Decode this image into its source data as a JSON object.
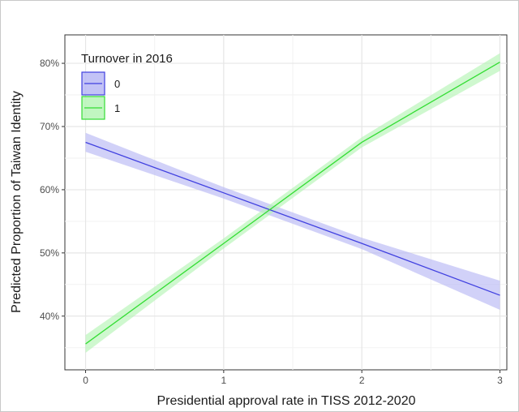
{
  "chart_data": {
    "type": "line",
    "title": "",
    "xlabel": "Presidential approval rate in TISS 2012-2020",
    "ylabel": "Predicted Proportion of Taiwan Identity",
    "xlim": [
      -0.15,
      3.05
    ],
    "ylim": [
      31.5,
      84.5
    ],
    "x_ticks": [
      0,
      1,
      2,
      3
    ],
    "x_tick_labels": [
      "0",
      "1",
      "2",
      "3"
    ],
    "y_ticks": [
      40,
      50,
      60,
      70,
      80
    ],
    "y_tick_labels": [
      "40%",
      "50%",
      "60%",
      "70%",
      "80%"
    ],
    "grid": true,
    "legend": {
      "title": "Turnover in 2016",
      "position": "top-left",
      "entries": [
        "0",
        "1"
      ]
    },
    "series": [
      {
        "name": "0",
        "color": "#4040e0",
        "band_color": "#b8b8f4",
        "x": [
          0,
          1,
          2,
          3
        ],
        "values": [
          67.5,
          59.5,
          51.5,
          43.3
        ],
        "lower": [
          66.0,
          58.6,
          50.6,
          41.0
        ],
        "upper": [
          69.0,
          60.4,
          52.4,
          45.6
        ]
      },
      {
        "name": "1",
        "color": "#33dd33",
        "band_color": "#b6f4b6",
        "x": [
          0,
          1,
          2,
          3
        ],
        "values": [
          35.6,
          51.5,
          67.5,
          80.2
        ],
        "lower": [
          34.2,
          50.7,
          66.7,
          78.8
        ],
        "upper": [
          37.0,
          52.3,
          68.3,
          81.6
        ]
      }
    ]
  }
}
